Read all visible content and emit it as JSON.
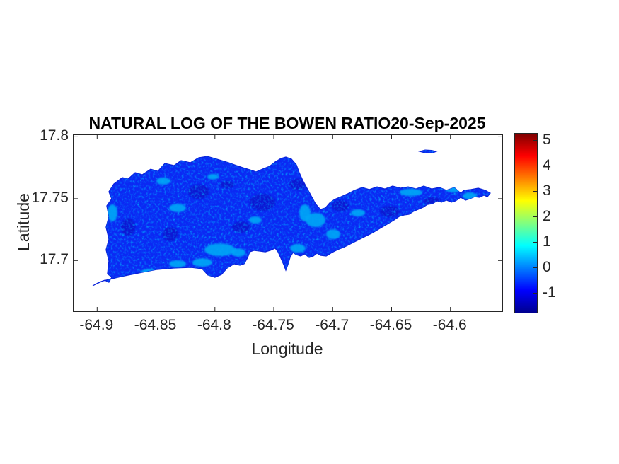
{
  "chart_data": {
    "type": "heatmap",
    "title": "NATURAL LOG OF THE BOWEN RATIO20-Sep-2025",
    "xlabel": "Longitude",
    "ylabel": "Latitude",
    "xlim": [
      -64.92,
      -64.556
    ],
    "ylim": [
      17.659,
      17.8014
    ],
    "grid": false,
    "x_ticks": [
      {
        "value": -64.9,
        "label": "-64.9"
      },
      {
        "value": -64.85,
        "label": "-64.85"
      },
      {
        "value": -64.8,
        "label": "-64.8"
      },
      {
        "value": -64.75,
        "label": "-64.75"
      },
      {
        "value": -64.7,
        "label": "-64.7"
      },
      {
        "value": -64.65,
        "label": "-64.65"
      },
      {
        "value": -64.6,
        "label": "-64.6"
      }
    ],
    "y_ticks": [
      {
        "value": 17.8,
        "label": "17.8"
      },
      {
        "value": 17.75,
        "label": "17.75"
      },
      {
        "value": 17.7,
        "label": "17.7"
      }
    ],
    "colorbar": {
      "position": "right",
      "clim": [
        -1.78,
        5.25
      ],
      "ticks": [
        {
          "value": 5,
          "label": "5"
        },
        {
          "value": 4,
          "label": "4"
        },
        {
          "value": 3,
          "label": "3"
        },
        {
          "value": 2,
          "label": "2"
        },
        {
          "value": 1,
          "label": "1"
        },
        {
          "value": 0,
          "label": "0"
        },
        {
          "value": -1,
          "label": "-1"
        }
      ],
      "colormap": "jet",
      "gradient_stops": [
        {
          "pos": 0,
          "color": "#7f0000"
        },
        {
          "pos": 12.5,
          "color": "#ff0000"
        },
        {
          "pos": 37.5,
          "color": "#ffff00"
        },
        {
          "pos": 62.5,
          "color": "#00ffff"
        },
        {
          "pos": 87.5,
          "color": "#0000ff"
        },
        {
          "pos": 100,
          "color": "#00008f"
        }
      ]
    },
    "map": {
      "note": "island raster of ln(Bowen ratio); bulk values near -0.7 (blue) with scattered patches near 0.5 (cyan)",
      "base_color": "#0b29f3",
      "edge_color": "#0a1fd8",
      "light_patch_color": "#00a6f6",
      "dark_patch_color": "#0715cd",
      "island_outline": [
        [
          -64.9038,
          17.6796
        ],
        [
          -64.8984,
          17.6824
        ],
        [
          -64.8936,
          17.6841
        ],
        [
          -64.89,
          17.6824
        ],
        [
          -64.8876,
          17.6864
        ],
        [
          -64.8912,
          17.6893
        ],
        [
          -64.89,
          17.6996
        ],
        [
          -64.8924,
          17.7087
        ],
        [
          -64.89,
          17.7173
        ],
        [
          -64.8924,
          17.727
        ],
        [
          -64.89,
          17.7356
        ],
        [
          -64.8918,
          17.7442
        ],
        [
          -64.8876,
          17.7499
        ],
        [
          -64.89,
          17.7556
        ],
        [
          -64.8858,
          17.7619
        ],
        [
          -64.8786,
          17.7671
        ],
        [
          -64.8737,
          17.766
        ],
        [
          -64.8677,
          17.7711
        ],
        [
          -64.8617,
          17.7694
        ],
        [
          -64.8545,
          17.7739
        ],
        [
          -64.8485,
          17.7722
        ],
        [
          -64.8425,
          17.7785
        ],
        [
          -64.8347,
          17.7768
        ],
        [
          -64.8287,
          17.7808
        ],
        [
          -64.8209,
          17.7791
        ],
        [
          -64.8137,
          17.7831
        ],
        [
          -64.8064,
          17.7842
        ],
        [
          -64.8004,
          17.7825
        ],
        [
          -64.7944,
          17.7808
        ],
        [
          -64.7884,
          17.7791
        ],
        [
          -64.7818,
          17.7768
        ],
        [
          -64.7764,
          17.7751
        ],
        [
          -64.7704,
          17.7734
        ],
        [
          -64.765,
          17.7717
        ],
        [
          -64.7596,
          17.7739
        ],
        [
          -64.7536,
          17.7762
        ],
        [
          -64.7488,
          17.7797
        ],
        [
          -64.744,
          17.7825
        ],
        [
          -64.7398,
          17.7837
        ],
        [
          -64.735,
          17.782
        ],
        [
          -64.7308,
          17.7774
        ],
        [
          -64.7284,
          17.7711
        ],
        [
          -64.7254,
          17.7648
        ],
        [
          -64.7218,
          17.7585
        ],
        [
          -64.7182,
          17.7522
        ],
        [
          -64.7146,
          17.7459
        ],
        [
          -64.7104,
          17.7413
        ],
        [
          -64.7062,
          17.7425
        ],
        [
          -64.7026,
          17.7465
        ],
        [
          -64.6984,
          17.7494
        ],
        [
          -64.6929,
          17.7516
        ],
        [
          -64.6875,
          17.7539
        ],
        [
          -64.6815,
          17.7568
        ],
        [
          -64.6749,
          17.7591
        ],
        [
          -64.6689,
          17.7574
        ],
        [
          -64.6623,
          17.7596
        ],
        [
          -64.6557,
          17.7579
        ],
        [
          -64.6491,
          17.7602
        ],
        [
          -64.6425,
          17.7585
        ],
        [
          -64.6359,
          17.7596
        ],
        [
          -64.6293,
          17.7579
        ],
        [
          -64.6227,
          17.7602
        ],
        [
          -64.616,
          17.7579
        ],
        [
          -64.6094,
          17.7591
        ],
        [
          -64.6034,
          17.7568
        ],
        [
          -64.5968,
          17.7591
        ],
        [
          -64.5914,
          17.7545
        ],
        [
          -64.5884,
          17.7568
        ],
        [
          -64.5824,
          17.7574
        ],
        [
          -64.5764,
          17.7585
        ],
        [
          -64.5704,
          17.7568
        ],
        [
          -64.5662,
          17.7545
        ],
        [
          -64.5686,
          17.7516
        ],
        [
          -64.5716,
          17.7528
        ],
        [
          -64.5752,
          17.7511
        ],
        [
          -64.5794,
          17.7516
        ],
        [
          -64.5836,
          17.7499
        ],
        [
          -64.5872,
          17.7488
        ],
        [
          -64.5914,
          17.7511
        ],
        [
          -64.5956,
          17.7482
        ],
        [
          -64.5992,
          17.7471
        ],
        [
          -64.6034,
          17.7488
        ],
        [
          -64.6076,
          17.7471
        ],
        [
          -64.6112,
          17.7482
        ],
        [
          -64.6154,
          17.7459
        ],
        [
          -64.6196,
          17.7453
        ],
        [
          -64.6232,
          17.743
        ],
        [
          -64.6274,
          17.7413
        ],
        [
          -64.6316,
          17.7396
        ],
        [
          -64.6352,
          17.7373
        ],
        [
          -64.6394,
          17.7368
        ],
        [
          -64.6436,
          17.7356
        ],
        [
          -64.6478,
          17.7328
        ],
        [
          -64.6539,
          17.7293
        ],
        [
          -64.6599,
          17.7259
        ],
        [
          -64.6659,
          17.7225
        ],
        [
          -64.6719,
          17.7196
        ],
        [
          -64.6779,
          17.7168
        ],
        [
          -64.6839,
          17.7139
        ],
        [
          -64.6899,
          17.711
        ],
        [
          -64.6959,
          17.7087
        ],
        [
          -64.7007,
          17.7064
        ],
        [
          -64.7055,
          17.7036
        ],
        [
          -64.7104,
          17.7042
        ],
        [
          -64.7134,
          17.7059
        ],
        [
          -64.7164,
          17.7036
        ],
        [
          -64.72,
          17.7024
        ],
        [
          -64.7236,
          17.7053
        ],
        [
          -64.7272,
          17.7036
        ],
        [
          -64.7308,
          17.7047
        ],
        [
          -64.7338,
          17.7064
        ],
        [
          -64.7362,
          17.7024
        ],
        [
          -64.738,
          17.6967
        ],
        [
          -64.7398,
          17.6921
        ],
        [
          -64.7416,
          17.6967
        ],
        [
          -64.744,
          17.7019
        ],
        [
          -64.7464,
          17.707
        ],
        [
          -64.7488,
          17.7099
        ],
        [
          -64.753,
          17.7082
        ],
        [
          -64.7572,
          17.707
        ],
        [
          -64.762,
          17.7076
        ],
        [
          -64.7668,
          17.7082
        ],
        [
          -64.7704,
          17.707
        ],
        [
          -64.7722,
          17.7024
        ],
        [
          -64.7752,
          17.6973
        ],
        [
          -64.7788,
          17.6962
        ],
        [
          -64.7836,
          17.6973
        ],
        [
          -64.7896,
          17.6939
        ],
        [
          -64.7944,
          17.6887
        ],
        [
          -64.8,
          17.6864
        ],
        [
          -64.806,
          17.6882
        ],
        [
          -64.8108,
          17.6933
        ],
        [
          -64.8198,
          17.6944
        ],
        [
          -64.8348,
          17.6939
        ],
        [
          -64.8497,
          17.6927
        ],
        [
          -64.8647,
          17.6899
        ],
        [
          -64.8797,
          17.687
        ],
        [
          -64.8948,
          17.6836
        ],
        [
          -64.9002,
          17.6813
        ]
      ],
      "islet_outline": [
        [
          -64.6263,
          17.7882
        ],
        [
          -64.6215,
          17.7894
        ],
        [
          -64.6161,
          17.7891
        ],
        [
          -64.6119,
          17.7882
        ],
        [
          -64.6155,
          17.7868
        ],
        [
          -64.6215,
          17.787
        ]
      ],
      "light_patches": [
        {
          "lon": -64.7957,
          "lat": 17.7087,
          "rx": 0.0132,
          "ry": 0.0051
        },
        {
          "lon": -64.78,
          "lat": 17.7064,
          "rx": 0.006,
          "ry": 0.0034
        },
        {
          "lon": -64.8437,
          "lat": 17.7642,
          "rx": 0.006,
          "ry": 0.0029
        },
        {
          "lon": -64.887,
          "lat": 17.7385,
          "rx": 0.0042,
          "ry": 0.0069
        },
        {
          "lon": -64.8317,
          "lat": 17.7425,
          "rx": 0.0072,
          "ry": 0.0034
        },
        {
          "lon": -64.7146,
          "lat": 17.7328,
          "rx": 0.0084,
          "ry": 0.0057
        },
        {
          "lon": -64.6996,
          "lat": 17.7213,
          "rx": 0.006,
          "ry": 0.004
        },
        {
          "lon": -64.6335,
          "lat": 17.7551,
          "rx": 0.0096,
          "ry": 0.0029
        },
        {
          "lon": -64.5974,
          "lat": 17.7574,
          "rx": 0.0072,
          "ry": 0.0023
        },
        {
          "lon": -64.5836,
          "lat": 17.7522,
          "rx": 0.006,
          "ry": 0.0029
        },
        {
          "lon": -64.6785,
          "lat": 17.7385,
          "rx": 0.006,
          "ry": 0.0029
        },
        {
          "lon": -64.7296,
          "lat": 17.7099,
          "rx": 0.0066,
          "ry": 0.0034
        },
        {
          "lon": -64.6635,
          "lat": 17.719,
          "rx": 0.0048,
          "ry": 0.0023
        },
        {
          "lon": -64.8557,
          "lat": 17.6904,
          "rx": 0.0072,
          "ry": 0.0029
        },
        {
          "lon": -64.8017,
          "lat": 17.7677,
          "rx": 0.0048,
          "ry": 0.0023
        },
        {
          "lon": -64.7657,
          "lat": 17.7328,
          "rx": 0.0054,
          "ry": 0.0029
        },
        {
          "lon": -64.7236,
          "lat": 17.7385,
          "rx": 0.0048,
          "ry": 0.0069
        },
        {
          "lon": -64.8107,
          "lat": 17.6984,
          "rx": 0.0084,
          "ry": 0.0034
        },
        {
          "lon": -64.8317,
          "lat": 17.6973,
          "rx": 0.0072,
          "ry": 0.0029
        }
      ],
      "dark_patches": [
        {
          "lon": -64.8137,
          "lat": 17.7556,
          "rx": 0.009,
          "ry": 0.0057
        },
        {
          "lon": -64.7596,
          "lat": 17.7471,
          "rx": 0.011,
          "ry": 0.0069
        },
        {
          "lon": -64.6935,
          "lat": 17.7442,
          "rx": 0.0072,
          "ry": 0.0046
        },
        {
          "lon": -64.6515,
          "lat": 17.7396,
          "rx": 0.0084,
          "ry": 0.0046
        },
        {
          "lon": -64.8737,
          "lat": 17.727,
          "rx": 0.006,
          "ry": 0.0069
        },
        {
          "lon": -64.7296,
          "lat": 17.7614,
          "rx": 0.0072,
          "ry": 0.0046
        },
        {
          "lon": -64.6154,
          "lat": 17.7482,
          "rx": 0.0072,
          "ry": 0.0029
        },
        {
          "lon": -64.7896,
          "lat": 17.7614,
          "rx": 0.006,
          "ry": 0.0029
        },
        {
          "lon": -64.8377,
          "lat": 17.7213,
          "rx": 0.0066,
          "ry": 0.0057
        },
        {
          "lon": -64.7776,
          "lat": 17.727,
          "rx": 0.0078,
          "ry": 0.0046
        }
      ]
    }
  },
  "colors": {
    "background": "#ffffff",
    "axis": "#262626",
    "title": "#000000"
  }
}
